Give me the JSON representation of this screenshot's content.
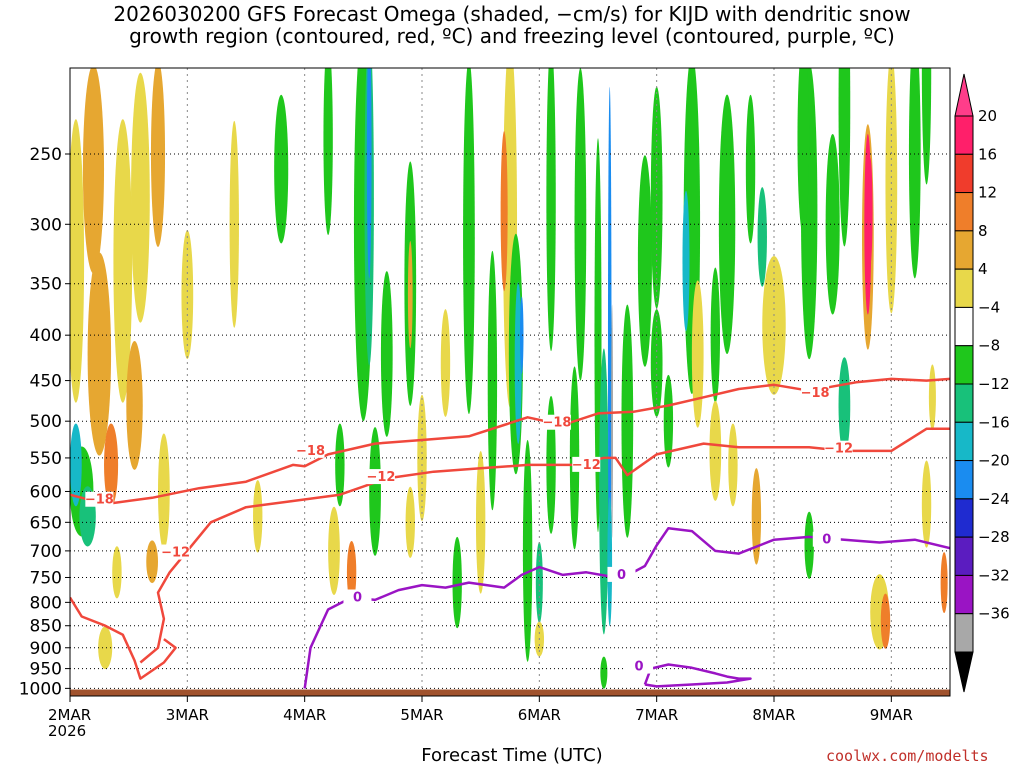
{
  "chart_data": {
    "type": "heatmap",
    "title": "2026030200 GFS Forecast Omega (shaded, −cm/s) for KIJD with dendritic snow growth region (contoured, red, ºC) and freezing level (contoured, purple, ºC)",
    "title_lines": [
      "2026030200 GFS Forecast Omega (shaded, −cm/s) for KIJD with dendritic snow",
      "growth region (contoured, red, ºC) and freezing level (contoured, purple, ºC)"
    ],
    "xlabel": "Forecast Time (UTC)",
    "x_year_label": "2026",
    "ylabel": "",
    "x_ticks": [
      "2MAR",
      "3MAR",
      "4MAR",
      "5MAR",
      "6MAR",
      "7MAR",
      "8MAR",
      "9MAR"
    ],
    "x_range_days": [
      0,
      7.5
    ],
    "y_ticks": [
      250,
      300,
      350,
      400,
      450,
      500,
      550,
      600,
      650,
      700,
      750,
      800,
      850,
      900,
      950,
      1000
    ],
    "y_range_hpa": [
      200,
      1020
    ],
    "colorbar": {
      "labels": [
        "20",
        "16",
        "12",
        "8",
        "4",
        "−4",
        "−8",
        "−12",
        "−16",
        "−20",
        "−24",
        "−28",
        "−32",
        "−36"
      ],
      "levels": [
        20,
        16,
        12,
        8,
        4,
        -4,
        -8,
        -12,
        -16,
        -20,
        -24,
        -28,
        -32,
        -36
      ],
      "colors": [
        "#ff1f6a",
        "#f03c2c",
        "#ef7e2a",
        "#e6a731",
        "#e8d84a",
        "#ffffff",
        "#1fc71c",
        "#18c17a",
        "#17b8c8",
        "#1a8cf0",
        "#1f2bd0",
        "#5b1cc0",
        "#9a14c4",
        "#a8a8a8"
      ],
      "top_arrow_color": "#ff3d8a",
      "bottom_arrow_color": "#000000"
    },
    "colors": {
      "dgz_contour": "#f0483c",
      "freezing_contour": "#9a14c4",
      "ground": "#a0522d"
    },
    "contours": {
      "dgz": [
        {
          "label": "−18",
          "points_day_hpa": [
            [
              0,
              605
            ],
            [
              0.3,
              620
            ],
            [
              0.7,
              610
            ],
            [
              1.1,
              595
            ],
            [
              1.5,
              585
            ],
            [
              1.9,
              560
            ],
            [
              2.0,
              562
            ],
            [
              2.2,
              545
            ],
            [
              2.6,
              530
            ],
            [
              3.0,
              525
            ],
            [
              3.4,
              520
            ],
            [
              3.7,
              505
            ],
            [
              3.9,
              495
            ],
            [
              4.2,
              505
            ],
            [
              4.5,
              490
            ],
            [
              4.8,
              488
            ],
            [
              5.1,
              480
            ],
            [
              5.4,
              470
            ],
            [
              5.7,
              460
            ],
            [
              6.0,
              455
            ],
            [
              6.3,
              462
            ],
            [
              6.7,
              452
            ],
            [
              7.0,
              448
            ],
            [
              7.3,
              450
            ],
            [
              7.5,
              448
            ]
          ]
        },
        {
          "label": "−12",
          "points_day_hpa": [
            [
              0.6,
              935
            ],
            [
              0.75,
              900
            ],
            [
              0.8,
              835
            ],
            [
              0.75,
              780
            ],
            [
              0.85,
              740
            ],
            [
              1.0,
              700
            ],
            [
              1.2,
              650
            ],
            [
              1.5,
              625
            ],
            [
              1.9,
              615
            ],
            [
              2.3,
              605
            ],
            [
              2.7,
              580
            ],
            [
              3.1,
              570
            ],
            [
              3.5,
              565
            ],
            [
              3.9,
              560
            ],
            [
              4.3,
              560
            ],
            [
              4.55,
              550
            ],
            [
              4.65,
              550
            ],
            [
              4.75,
              575
            ],
            [
              5.0,
              545
            ],
            [
              5.4,
              530
            ],
            [
              5.7,
              535
            ],
            [
              6.0,
              535
            ],
            [
              6.3,
              535
            ],
            [
              6.6,
              540
            ],
            [
              7.0,
              540
            ],
            [
              7.3,
              510
            ],
            [
              7.5,
              510
            ]
          ]
        },
        {
          "label": "",
          "points_day_hpa": [
            [
              0,
              790
            ],
            [
              0.1,
              830
            ],
            [
              0.3,
              850
            ],
            [
              0.45,
              870
            ],
            [
              0.55,
              930
            ],
            [
              0.6,
              975
            ],
            [
              0.8,
              935
            ],
            [
              0.9,
              900
            ],
            [
              0.8,
              880
            ]
          ]
        }
      ],
      "freezing": [
        {
          "label": "0",
          "points_day_hpa": [
            [
              2.0,
              1000
            ],
            [
              2.05,
              900
            ],
            [
              2.2,
              815
            ],
            [
              2.4,
              790
            ],
            [
              2.6,
              795
            ],
            [
              2.8,
              775
            ],
            [
              3.0,
              765
            ],
            [
              3.2,
              770
            ],
            [
              3.4,
              760
            ],
            [
              3.7,
              770
            ],
            [
              3.85,
              745
            ],
            [
              4.0,
              730
            ],
            [
              4.2,
              745
            ],
            [
              4.4,
              740
            ],
            [
              4.6,
              748
            ],
            [
              4.8,
              740
            ],
            [
              4.9,
              728
            ],
            [
              5.0,
              690
            ],
            [
              5.1,
              660
            ],
            [
              5.3,
              665
            ],
            [
              5.5,
              700
            ],
            [
              5.7,
              705
            ],
            [
              6.0,
              680
            ],
            [
              6.3,
              675
            ],
            [
              6.6,
              680
            ],
            [
              6.9,
              685
            ],
            [
              7.2,
              680
            ],
            [
              7.5,
              695
            ]
          ]
        },
        {
          "label": "0",
          "points_day_hpa": [
            [
              4.9,
              990
            ],
            [
              4.95,
              950
            ],
            [
              5.1,
              940
            ],
            [
              5.3,
              948
            ],
            [
              5.5,
              962
            ],
            [
              5.6,
              970
            ],
            [
              5.7,
              975
            ],
            [
              5.8,
              975
            ],
            [
              5.6,
              985
            ],
            [
              5.3,
              990
            ],
            [
              5.0,
              995
            ],
            [
              4.9,
              990
            ]
          ]
        }
      ]
    },
    "annotations": [
      "−18",
      "−18",
      "−18",
      "−18",
      "−12",
      "−12",
      "−12",
      "−12",
      "0",
      "0",
      "0",
      "0"
    ],
    "credit": "coolwx.com/modelts"
  }
}
